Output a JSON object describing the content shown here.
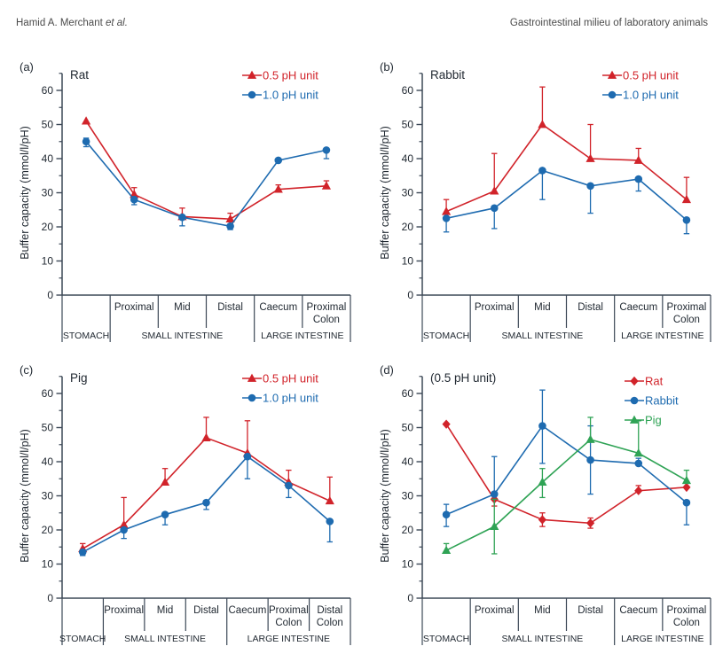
{
  "header": {
    "author": "Hamid A. Merchant ",
    "author_suffix": "et al.",
    "right_title": "Gastrointestinal milieu of laboratory animals"
  },
  "style": {
    "red": "#d1232a",
    "blue": "#1e6bb0",
    "green": "#2fa355",
    "axis_color": "#3c4856",
    "text_color": "#1f2730",
    "header_text_color": "#4b4b4b"
  },
  "chart_data": [
    {
      "panel_letter": "(a)",
      "title": "Rat",
      "type": "line",
      "ylabel": "Buffer capacity (mmol/l/pH)",
      "ylim": [
        0,
        60
      ],
      "ytick_labels": [
        "0",
        "10",
        "20",
        "30",
        "40",
        "50",
        "60"
      ],
      "legend_position": "top-right",
      "x_axis": {
        "segment_labels": [
          [],
          [
            "Proximal"
          ],
          [
            "Mid"
          ],
          [
            "Distal"
          ],
          [
            "Caecum"
          ],
          [
            "Proximal",
            "Colon"
          ]
        ],
        "groups": [
          {
            "label": "STOMACH",
            "span": 1
          },
          {
            "label": "SMALL INTESTINE",
            "span": 3
          },
          {
            "label": "LARGE INTESTINE",
            "span": 2
          }
        ]
      },
      "series": [
        {
          "name": "0.5 pH unit",
          "color": "#d1232a",
          "marker": "triangle",
          "values": [
            51,
            29.5,
            23,
            22.3,
            31,
            32
          ],
          "err_up": [
            0,
            2,
            2.5,
            1.7,
            1.3,
            1.5
          ],
          "err_down": [
            0,
            1.5,
            0,
            1.5,
            0,
            0
          ]
        },
        {
          "name": "1.0 pH unit",
          "color": "#1e6bb0",
          "marker": "circle",
          "values": [
            45,
            28,
            22.8,
            20.2,
            39.5,
            42.5
          ],
          "err_up": [
            1,
            0,
            0,
            0,
            0,
            0
          ],
          "err_down": [
            1.5,
            1.5,
            2.5,
            1,
            0,
            2.5
          ]
        }
      ]
    },
    {
      "panel_letter": "(b)",
      "title": "Rabbit",
      "type": "line",
      "ylabel": "Buffer capacity (mmol/l/pH)",
      "ylim": [
        0,
        60
      ],
      "ytick_labels": [
        "0",
        "10",
        "20",
        "30",
        "40",
        "50",
        "60"
      ],
      "legend_position": "top-right",
      "x_axis": {
        "segment_labels": [
          [],
          [
            "Proximal"
          ],
          [
            "Mid"
          ],
          [
            "Distal"
          ],
          [
            "Caecum"
          ],
          [
            "Proximal",
            "Colon"
          ]
        ],
        "groups": [
          {
            "label": "STOMACH",
            "span": 1
          },
          {
            "label": "SMALL INTESTINE",
            "span": 3
          },
          {
            "label": "LARGE INTESTINE",
            "span": 2
          }
        ]
      },
      "series": [
        {
          "name": "0.5 pH unit",
          "color": "#d1232a",
          "marker": "triangle",
          "values": [
            24.5,
            30.5,
            50,
            40,
            39.5,
            28
          ],
          "err_up": [
            3.5,
            11,
            11,
            10,
            3.5,
            6.5
          ],
          "err_down": [
            1.5,
            0,
            0,
            0,
            0,
            0
          ]
        },
        {
          "name": "1.0 pH unit",
          "color": "#1e6bb0",
          "marker": "circle",
          "values": [
            22.5,
            25.5,
            36.5,
            32,
            34,
            22
          ],
          "err_up": [
            0,
            0,
            0,
            0,
            0,
            0
          ],
          "err_down": [
            4,
            6,
            8.5,
            8,
            3.5,
            4
          ]
        }
      ]
    },
    {
      "panel_letter": "(c)",
      "title": "Pig",
      "type": "line",
      "ylabel": "Buffer capacity (mmol/l/pH)",
      "ylim": [
        0,
        60
      ],
      "ytick_labels": [
        "0",
        "10",
        "20",
        "30",
        "40",
        "50",
        "60"
      ],
      "legend_position": "top-right",
      "x_axis": {
        "segment_labels": [
          [],
          [
            "Proximal"
          ],
          [
            "Mid"
          ],
          [
            "Distal"
          ],
          [
            "Caecum"
          ],
          [
            "Proximal",
            "Colon"
          ],
          [
            "Distal",
            "Colon"
          ]
        ],
        "groups": [
          {
            "label": "STOMACH",
            "span": 1
          },
          {
            "label": "SMALL INTESTINE",
            "span": 3
          },
          {
            "label": "LARGE INTESTINE",
            "span": 3
          }
        ]
      },
      "series": [
        {
          "name": "0.5 pH unit",
          "color": "#d1232a",
          "marker": "triangle",
          "values": [
            14.5,
            21.5,
            34,
            47,
            42.5,
            34,
            28.5
          ],
          "err_up": [
            1.5,
            8,
            4,
            6,
            9.5,
            3.5,
            7
          ],
          "err_down": [
            0,
            0,
            0,
            0,
            0,
            0,
            0
          ]
        },
        {
          "name": "1.0 pH unit",
          "color": "#1e6bb0",
          "marker": "circle",
          "values": [
            13.5,
            20,
            24.5,
            28,
            41.5,
            33,
            22.5
          ],
          "err_up": [
            0,
            0,
            0,
            0,
            0,
            0,
            0
          ],
          "err_down": [
            1,
            2.5,
            3,
            2,
            6.5,
            3.5,
            6
          ]
        }
      ]
    },
    {
      "panel_letter": "(d)",
      "title": "(0.5 pH unit)",
      "type": "line",
      "ylabel": "Buffer capacity (mmol/l/pH)",
      "ylim": [
        0,
        60
      ],
      "ytick_labels": [
        "0",
        "10",
        "20",
        "30",
        "40",
        "50",
        "60"
      ],
      "legend_position": "top-right",
      "x_axis": {
        "segment_labels": [
          [],
          [
            "Proximal"
          ],
          [
            "Mid"
          ],
          [
            "Distal"
          ],
          [
            "Caecum"
          ],
          [
            "Proximal",
            "Colon"
          ]
        ],
        "groups": [
          {
            "label": "STOMACH",
            "span": 1
          },
          {
            "label": "SMALL INTESTINE",
            "span": 3
          },
          {
            "label": "LARGE INTESTINE",
            "span": 2
          }
        ]
      },
      "series": [
        {
          "name": "Rat",
          "color": "#d1232a",
          "marker": "diamond",
          "values": [
            51,
            29,
            23,
            22,
            31.5,
            32.5
          ],
          "err_up": [
            0,
            2,
            2,
            1.5,
            1.5,
            1.5
          ],
          "err_down": [
            0,
            2,
            2,
            1.5,
            0,
            0
          ]
        },
        {
          "name": "Rabbit",
          "color": "#1e6bb0",
          "marker": "circle",
          "values": [
            24.5,
            30.5,
            50.5,
            40.5,
            39.5,
            28
          ],
          "err_up": [
            3,
            11,
            10.5,
            10,
            1.5,
            0
          ],
          "err_down": [
            3.5,
            0,
            11,
            10,
            0,
            6.5
          ]
        },
        {
          "name": "Pig",
          "color": "#2fa355",
          "marker": "triangle",
          "values": [
            14,
            21,
            34,
            46.5,
            42.5,
            34.5
          ],
          "err_up": [
            2,
            8,
            4,
            6.5,
            9.5,
            3
          ],
          "err_down": [
            0,
            8,
            4.5,
            0,
            0,
            0
          ]
        }
      ]
    }
  ]
}
